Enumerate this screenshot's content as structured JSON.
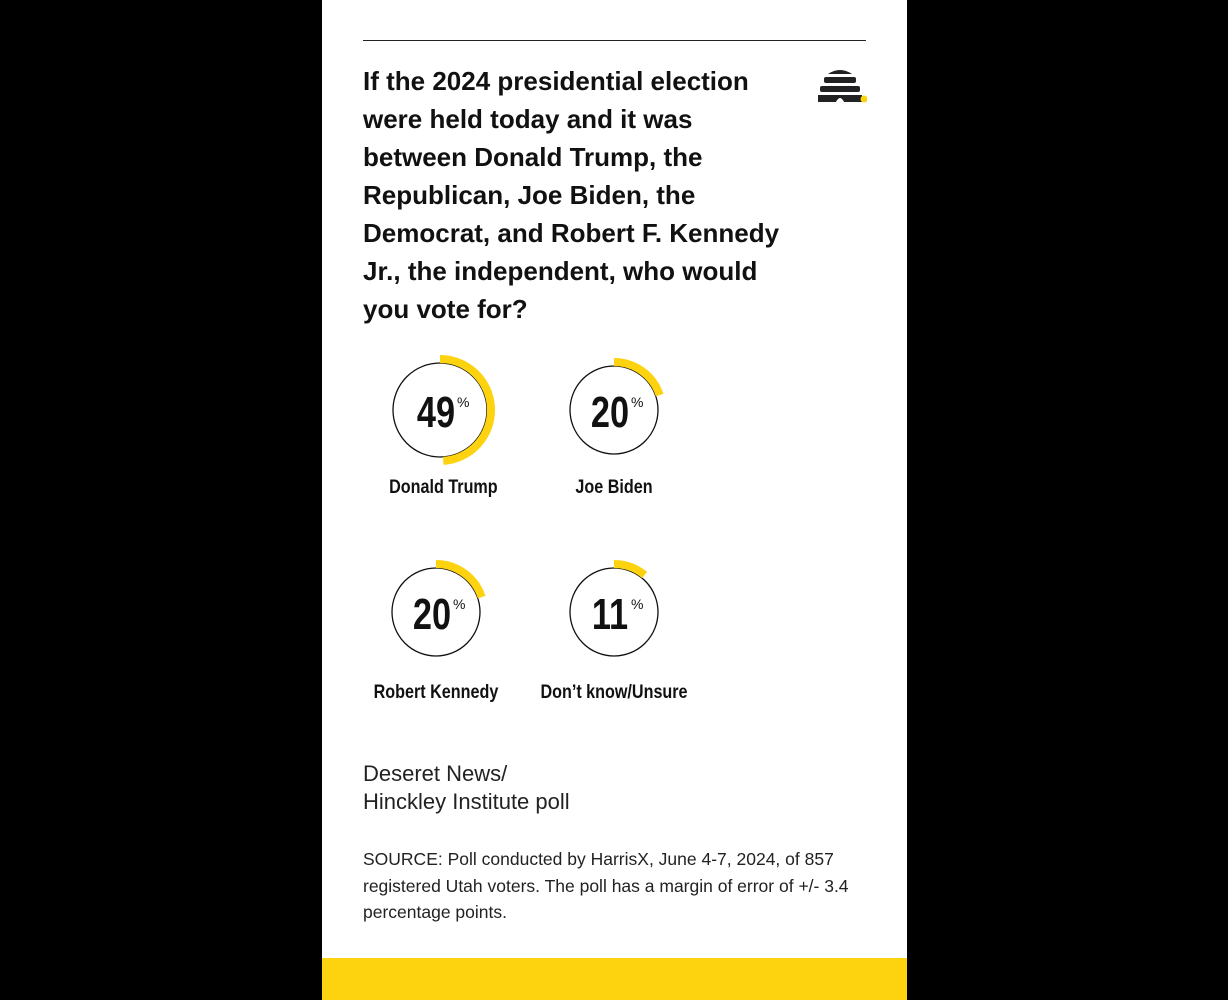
{
  "title": "If the 2024 presidential election were held today and it was between Donald Trump, the Republican, Joe Biden, the Democrat, and Robert F. Kennedy Jr., the independent, who would you vote for?",
  "poll_name_line1": "Deseret News/",
  "poll_name_line2": "Hinckley Institute poll",
  "source": "SOURCE: Poll conducted by HarrisX, June 4-7, 2024, of 857 registered Utah voters. The poll has a margin of error of +/- 3.4 percentage points.",
  "colors": {
    "accent": "#fdd30f",
    "text": "#111111"
  },
  "chart_data": {
    "type": "pie",
    "title": "If the 2024 presidential election were held today and it was between Donald Trump, the Republican, Joe Biden, the Democrat, and Robert F. Kennedy Jr., the independent, who would you vote for?",
    "unit": "%",
    "categories": [
      "Donald Trump",
      "Joe Biden",
      "Robert Kennedy",
      "Don’t know/Unsure"
    ],
    "values": [
      49,
      20,
      20,
      11
    ]
  }
}
